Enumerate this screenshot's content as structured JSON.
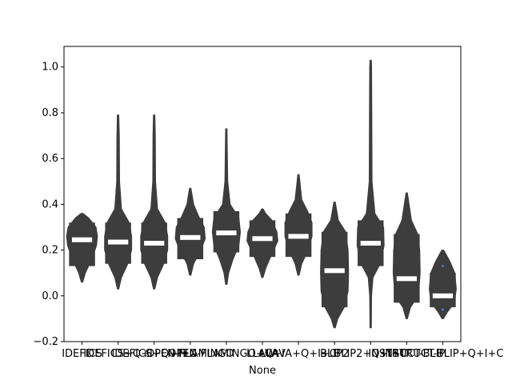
{
  "chart_data": {
    "type": "violin",
    "xlabel": "None",
    "ylabel": "",
    "ylim": [
      -0.2,
      1.09
    ],
    "yticks": [
      "−0.2",
      "0.0",
      "0.2",
      "0.4",
      "0.6",
      "0.8",
      "1.0"
    ],
    "ytick_values": [
      -0.2,
      0.0,
      0.2,
      0.4,
      0.6,
      0.8,
      1.0
    ],
    "grid": false,
    "colors": {
      "body": "#3d3d3d",
      "median": "#ffffff",
      "outlier": "#4a8bd8"
    },
    "categories": [
      "IDEFICS",
      "IDEFICS+Q+I",
      "IDEFICS+Q+I+C",
      "OPEN-FLAMINGO",
      "OPEN-FLAMINGO+Q+I",
      "LLAVA",
      "LLAVA+Q+I+C",
      "BLIP2",
      "BLIP2+Q+I+C",
      "INSTRUCT-BLIP",
      "INSTRUCT-BLIP+Q+I+C"
    ],
    "series": [
      {
        "min": 0.06,
        "q1": 0.13,
        "median": 0.245,
        "q3": 0.32,
        "max": 0.36,
        "shape": [
          [
            0.06,
            0.03
          ],
          [
            0.1,
            0.14
          ],
          [
            0.16,
            0.4
          ],
          [
            0.22,
            0.6
          ],
          [
            0.26,
            0.64
          ],
          [
            0.3,
            0.58
          ],
          [
            0.34,
            0.28
          ],
          [
            0.36,
            0.04
          ]
        ]
      },
      {
        "min": 0.03,
        "q1": 0.14,
        "median": 0.235,
        "q3": 0.32,
        "max": 0.79,
        "shape": [
          [
            0.03,
            0.03
          ],
          [
            0.08,
            0.14
          ],
          [
            0.14,
            0.4
          ],
          [
            0.2,
            0.56
          ],
          [
            0.26,
            0.56
          ],
          [
            0.32,
            0.46
          ],
          [
            0.38,
            0.14
          ],
          [
            0.5,
            0.06
          ],
          [
            0.7,
            0.05
          ],
          [
            0.79,
            0.03
          ]
        ]
      },
      {
        "min": 0.03,
        "q1": 0.14,
        "median": 0.23,
        "q3": 0.32,
        "max": 0.79,
        "shape": [
          [
            0.03,
            0.03
          ],
          [
            0.08,
            0.14
          ],
          [
            0.14,
            0.4
          ],
          [
            0.2,
            0.56
          ],
          [
            0.26,
            0.56
          ],
          [
            0.32,
            0.46
          ],
          [
            0.38,
            0.14
          ],
          [
            0.5,
            0.06
          ],
          [
            0.7,
            0.05
          ],
          [
            0.79,
            0.03
          ]
        ]
      },
      {
        "min": 0.09,
        "q1": 0.16,
        "median": 0.255,
        "q3": 0.34,
        "max": 0.47,
        "shape": [
          [
            0.09,
            0.03
          ],
          [
            0.14,
            0.14
          ],
          [
            0.2,
            0.44
          ],
          [
            0.25,
            0.62
          ],
          [
            0.3,
            0.58
          ],
          [
            0.35,
            0.34
          ],
          [
            0.4,
            0.14
          ],
          [
            0.44,
            0.08
          ],
          [
            0.47,
            0.03
          ]
        ]
      },
      {
        "min": 0.05,
        "q1": 0.19,
        "median": 0.275,
        "q3": 0.37,
        "max": 0.73,
        "shape": [
          [
            0.05,
            0.03
          ],
          [
            0.1,
            0.1
          ],
          [
            0.16,
            0.28
          ],
          [
            0.22,
            0.52
          ],
          [
            0.28,
            0.58
          ],
          [
            0.34,
            0.52
          ],
          [
            0.4,
            0.16
          ],
          [
            0.5,
            0.06
          ],
          [
            0.65,
            0.04
          ],
          [
            0.73,
            0.03
          ]
        ]
      },
      {
        "min": 0.08,
        "q1": 0.17,
        "median": 0.25,
        "q3": 0.33,
        "max": 0.38,
        "shape": [
          [
            0.08,
            0.03
          ],
          [
            0.12,
            0.14
          ],
          [
            0.18,
            0.38
          ],
          [
            0.24,
            0.64
          ],
          [
            0.28,
            0.6
          ],
          [
            0.33,
            0.4
          ],
          [
            0.36,
            0.14
          ],
          [
            0.38,
            0.03
          ]
        ]
      },
      {
        "min": 0.09,
        "q1": 0.17,
        "median": 0.26,
        "q3": 0.36,
        "max": 0.53,
        "shape": [
          [
            0.09,
            0.03
          ],
          [
            0.14,
            0.14
          ],
          [
            0.2,
            0.4
          ],
          [
            0.26,
            0.56
          ],
          [
            0.32,
            0.56
          ],
          [
            0.37,
            0.38
          ],
          [
            0.42,
            0.14
          ],
          [
            0.48,
            0.08
          ],
          [
            0.53,
            0.03
          ]
        ]
      },
      {
        "min": -0.14,
        "q1": -0.05,
        "median": 0.11,
        "q3": 0.28,
        "max": 0.41,
        "shape": [
          [
            -0.14,
            0.03
          ],
          [
            -0.1,
            0.14
          ],
          [
            -0.05,
            0.4
          ],
          [
            0.02,
            0.56
          ],
          [
            0.1,
            0.58
          ],
          [
            0.2,
            0.56
          ],
          [
            0.28,
            0.46
          ],
          [
            0.33,
            0.16
          ],
          [
            0.38,
            0.08
          ],
          [
            0.41,
            0.03
          ]
        ]
      },
      {
        "min": -0.14,
        "q1": 0.13,
        "median": 0.23,
        "q3": 0.33,
        "max": 1.03,
        "shape": [
          [
            -0.14,
            0.03
          ],
          [
            0.0,
            0.04
          ],
          [
            0.08,
            0.1
          ],
          [
            0.14,
            0.4
          ],
          [
            0.22,
            0.56
          ],
          [
            0.3,
            0.54
          ],
          [
            0.36,
            0.18
          ],
          [
            0.5,
            0.06
          ],
          [
            0.8,
            0.05
          ],
          [
            1.0,
            0.04
          ],
          [
            1.03,
            0.03
          ]
        ]
      },
      {
        "min": -0.1,
        "q1": -0.03,
        "median": 0.075,
        "q3": 0.27,
        "max": 0.45,
        "shape": [
          [
            -0.1,
            0.03
          ],
          [
            -0.05,
            0.16
          ],
          [
            0.0,
            0.48
          ],
          [
            0.1,
            0.56
          ],
          [
            0.2,
            0.54
          ],
          [
            0.27,
            0.46
          ],
          [
            0.33,
            0.2
          ],
          [
            0.4,
            0.1
          ],
          [
            0.45,
            0.03
          ]
        ]
      },
      {
        "min": -0.1,
        "q1": -0.05,
        "median": 0.0,
        "q3": 0.1,
        "max": 0.2,
        "shape": [
          [
            -0.1,
            0.03
          ],
          [
            -0.07,
            0.2
          ],
          [
            -0.03,
            0.48
          ],
          [
            0.03,
            0.56
          ],
          [
            0.1,
            0.5
          ],
          [
            0.15,
            0.3
          ],
          [
            0.2,
            0.04
          ]
        ],
        "outliers": [
          0.13,
          -0.06
        ]
      }
    ]
  }
}
